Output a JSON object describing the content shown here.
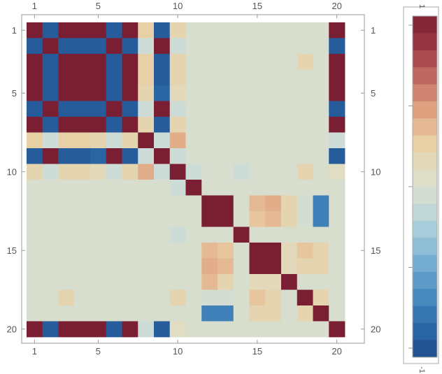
{
  "chart_data": {
    "type": "heatmap",
    "n": 20,
    "x_ticks": [
      "1",
      "5",
      "10",
      "15",
      "20"
    ],
    "y_ticks": [
      "1",
      "5",
      "10",
      "15",
      "20"
    ],
    "tick_positions": [
      1,
      5,
      10,
      15,
      20
    ],
    "value_range": [
      -1,
      1
    ],
    "legend": {
      "placement": "right",
      "top_label": "1",
      "bottom_label": "-1",
      "bins": 20
    },
    "matrix": [
      [
        1,
        -0.9,
        1,
        1,
        1,
        -0.9,
        1,
        0.25,
        -0.9,
        0.2,
        0,
        0,
        0,
        0,
        0,
        0,
        0,
        0,
        0,
        1
      ],
      [
        -0.9,
        1,
        -0.9,
        -0.9,
        -0.9,
        1,
        -0.9,
        -0.1,
        1,
        -0.1,
        0,
        0,
        0,
        0,
        0,
        0,
        0,
        0,
        0,
        -0.9
      ],
      [
        1,
        -0.9,
        1,
        1,
        1,
        -0.9,
        1,
        0.25,
        -0.9,
        0.2,
        0,
        0,
        0,
        0,
        0,
        0,
        0,
        0.2,
        0,
        1
      ],
      [
        1,
        -0.9,
        1,
        1,
        1,
        -0.9,
        1,
        0.25,
        -0.9,
        0.2,
        0,
        0,
        0,
        0,
        0,
        0,
        0,
        0,
        0,
        1
      ],
      [
        1,
        -0.9,
        1,
        1,
        1,
        -0.9,
        1,
        0.2,
        -0.85,
        0.15,
        0,
        0,
        0,
        0,
        0,
        0,
        0,
        0,
        0,
        1
      ],
      [
        -0.9,
        1,
        -0.9,
        -0.9,
        -0.9,
        1,
        -0.9,
        -0.1,
        1,
        -0.1,
        0,
        0,
        0,
        0,
        0,
        0,
        0,
        0,
        0,
        -0.9
      ],
      [
        1,
        -0.9,
        1,
        1,
        1,
        -0.9,
        1,
        0.2,
        -0.9,
        0.2,
        0,
        0,
        0,
        0,
        0,
        0,
        0,
        0,
        0,
        1
      ],
      [
        0.25,
        -0.1,
        0.25,
        0.25,
        0.2,
        -0.1,
        0.2,
        1,
        -0.1,
        0.4,
        0,
        0,
        0,
        0,
        0,
        0,
        0,
        0,
        0,
        -0.1
      ],
      [
        -0.9,
        1,
        -0.9,
        -0.9,
        -0.85,
        1,
        -0.9,
        -0.1,
        1,
        -0.1,
        0,
        0,
        0,
        0,
        0,
        0,
        0,
        0,
        0,
        -0.9
      ],
      [
        0.2,
        -0.1,
        0.2,
        0.2,
        0.15,
        -0.1,
        0.2,
        0.4,
        -0.1,
        1,
        -0.1,
        0,
        0,
        -0.1,
        0,
        0,
        0,
        0.2,
        0,
        0.1
      ],
      [
        0,
        0,
        0,
        0,
        0,
        0,
        0,
        0,
        0,
        -0.1,
        1,
        0,
        0,
        0,
        0,
        0,
        0,
        0,
        0,
        0
      ],
      [
        0,
        0,
        0,
        0,
        0,
        0,
        0,
        0,
        0,
        0,
        0,
        1,
        1,
        0,
        0.35,
        0.4,
        0.2,
        -0.05,
        -0.7,
        0
      ],
      [
        0,
        0,
        0,
        0,
        0,
        0,
        0,
        0,
        0,
        0,
        0,
        1,
        1,
        0,
        0.3,
        0.35,
        0.2,
        -0.05,
        -0.7,
        0
      ],
      [
        0,
        0,
        0,
        0,
        0,
        0,
        0,
        0,
        0,
        -0.1,
        0,
        0,
        0,
        1,
        0,
        0,
        0,
        0,
        0,
        0
      ],
      [
        0,
        0,
        0,
        0,
        0,
        0,
        0,
        0,
        0,
        0,
        0,
        0.35,
        0.3,
        0,
        1,
        1,
        0.15,
        0.3,
        0.2,
        0
      ],
      [
        0,
        0,
        0,
        0,
        0,
        0,
        0,
        0,
        0,
        0,
        0,
        0.4,
        0.35,
        0,
        1,
        1,
        0.15,
        0.2,
        0.2,
        0
      ],
      [
        0,
        0,
        0,
        0,
        0,
        0,
        0,
        0,
        0,
        0,
        0,
        0.35,
        0.2,
        0,
        0.15,
        0.15,
        1,
        0,
        0,
        0
      ],
      [
        0,
        0,
        0.2,
        0,
        0,
        0,
        0,
        0,
        0,
        0.2,
        0,
        -0.05,
        -0.05,
        0,
        0.3,
        0.2,
        0,
        1,
        0.2,
        0
      ],
      [
        0,
        0,
        0,
        0,
        0,
        0,
        0,
        0,
        0,
        0,
        0,
        -0.7,
        -0.7,
        0,
        0.2,
        0.2,
        0,
        0.2,
        1,
        0
      ],
      [
        1,
        -0.9,
        1,
        1,
        1,
        -0.9,
        1,
        -0.1,
        -0.9,
        0.1,
        0,
        0,
        0,
        0,
        0,
        0,
        0,
        0,
        0,
        1
      ]
    ]
  },
  "colors": {
    "scale": [
      "#224a8c",
      "#2b6aa8",
      "#4a8cc0",
      "#74acd1",
      "#a4c9da",
      "#cfddd6",
      "#e1dec4",
      "#e8cda2",
      "#df9f7e",
      "#bf6b63",
      "#9c3844",
      "#7a1f33"
    ],
    "frame": "#999999",
    "tick_text": "#555555"
  }
}
